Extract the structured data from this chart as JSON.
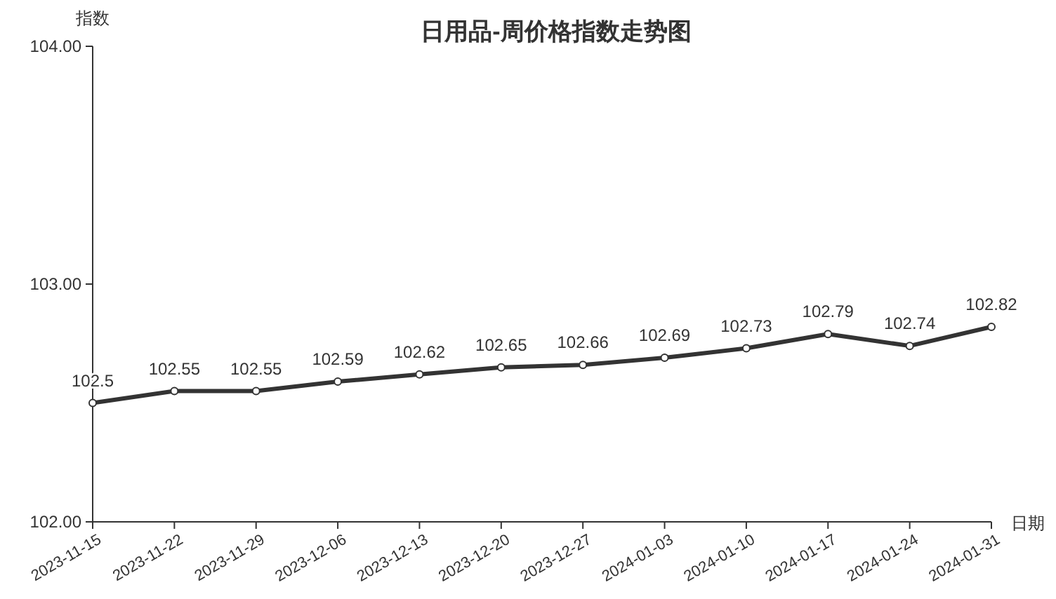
{
  "chart_data": {
    "type": "line",
    "title": "日用品-周价格指数走势图",
    "xlabel": "日期",
    "ylabel": "指数",
    "categories": [
      "2023-11-15",
      "2023-11-22",
      "2023-11-29",
      "2023-12-06",
      "2023-12-13",
      "2023-12-20",
      "2023-12-27",
      "2024-01-03",
      "2024-01-10",
      "2024-01-17",
      "2024-01-24",
      "2024-01-31"
    ],
    "series": [
      {
        "color": "#333333",
        "values": [
          102.5,
          102.55,
          102.55,
          102.59,
          102.62,
          102.65,
          102.66,
          102.69,
          102.73,
          102.79,
          102.74,
          102.82
        ]
      }
    ],
    "ylim": [
      102,
      104
    ],
    "yticks": [
      {
        "value": 102,
        "label": "102.00"
      },
      {
        "value": 103,
        "label": "103.00"
      },
      {
        "value": 104,
        "label": "104.00"
      }
    ],
    "data_labels": true,
    "marker": "circle",
    "line_style": "solid",
    "grid": false
  }
}
